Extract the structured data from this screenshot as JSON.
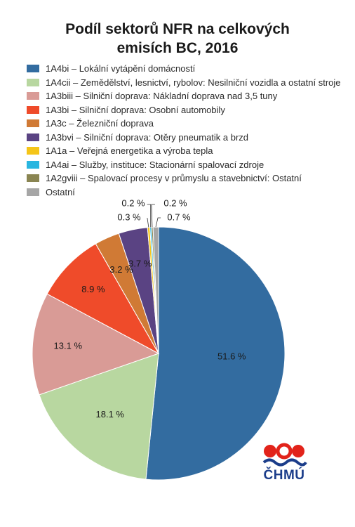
{
  "chart_data": {
    "type": "pie",
    "title_line1": "Podíl sektorů NFR na celkových",
    "title_line2": "emisích BC, 2016",
    "legend_position": "top",
    "series": [
      {
        "name": "1A4bi – Lokální vytápění domácností",
        "value": 51.6,
        "label": "51.6 %",
        "color": "#336ca0"
      },
      {
        "name": "1A4cii – Zemědělství, lesnictví, rybolov: Nesilniční vozidla a ostatní stroje",
        "value": 18.1,
        "label": "18.1 %",
        "color": "#b8d7a0"
      },
      {
        "name": "1A3biii – Silniční doprava: Nákladní doprava nad 3,5 tuny",
        "value": 13.1,
        "label": "13.1 %",
        "color": "#d99b96"
      },
      {
        "name": "1A3bi – Silniční doprava: Osobní automobily",
        "value": 8.9,
        "label": "8.9 %",
        "color": "#ef4b2a"
      },
      {
        "name": "1A3c – Železniční doprava",
        "value": 3.2,
        "label": "3.2 %",
        "color": "#d07a35"
      },
      {
        "name": "1A3bvi – Silniční doprava: Otěry pneumatik a brzd",
        "value": 3.7,
        "label": "3.7 %",
        "color": "#5a4383"
      },
      {
        "name": "1A1a – Veřejná energetika a výroba tepla",
        "value": 0.3,
        "label": "0.3 %",
        "color": "#f5c518"
      },
      {
        "name": "1A4ai – Služby, instituce: Stacionární spalovací zdroje",
        "value": 0.2,
        "label": "0.2 %",
        "color": "#29b6e0"
      },
      {
        "name": "1A2gviii – Spalovací procesy v průmyslu a stavebnictví: Ostatní",
        "value": 0.2,
        "label": "0.2 %",
        "color": "#8a8552"
      },
      {
        "name": "Ostatní",
        "value": 0.7,
        "label": "0.7 %",
        "color": "#a6a6a6"
      }
    ]
  },
  "logo": {
    "text": "ČHMÚ",
    "colors": {
      "red": "#e2231a",
      "blue": "#1b3d8a"
    }
  }
}
